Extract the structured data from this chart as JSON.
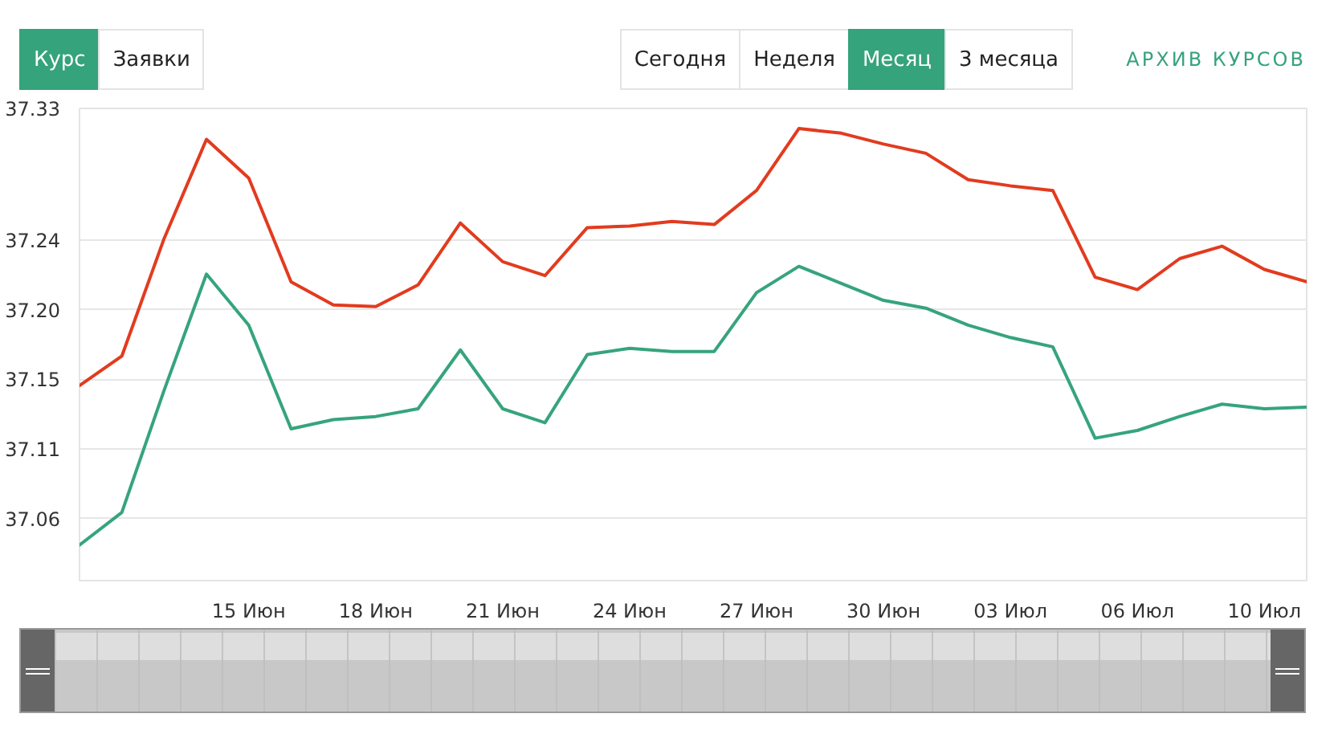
{
  "chart_data": {
    "type": "line",
    "annotations": [
      "Курс",
      "Заявки",
      "Сегодня",
      "Неделя",
      "Месяц",
      "3 месяца",
      "АРХИВ КУРСОВ"
    ],
    "categories": [
      null,
      null,
      null,
      null,
      "15 Июн",
      null,
      null,
      "18 Июн",
      null,
      null,
      "21 Июн",
      null,
      null,
      "24 Июн",
      null,
      null,
      "27 Июн",
      null,
      null,
      "30 Июн",
      null,
      null,
      "03 Июл",
      null,
      null,
      "06 Июл",
      null,
      null,
      "10 Июл",
      null
    ],
    "series": [
      {
        "color": "#e23b1f",
        "values": [
          37.146,
          37.165,
          37.241,
          37.305,
          37.28,
          37.213,
          37.198,
          37.197,
          37.211,
          37.251,
          37.226,
          37.217,
          37.248,
          37.249,
          37.252,
          37.25,
          37.272,
          37.312,
          37.309,
          37.302,
          37.296,
          37.279,
          37.275,
          37.272,
          37.216,
          37.208,
          37.228,
          37.236,
          37.221,
          37.213
        ]
      },
      {
        "color": "#36a47c",
        "values": [
          37.043,
          37.064,
          37.143,
          37.218,
          37.185,
          37.118,
          37.124,
          37.126,
          37.131,
          37.169,
          37.131,
          37.122,
          37.166,
          37.17,
          37.168,
          37.168,
          37.206,
          37.223,
          37.212,
          37.201,
          37.196,
          37.185,
          37.177,
          37.171,
          37.112,
          37.117,
          37.126,
          37.134,
          37.131,
          37.132
        ]
      }
    ],
    "ylim": [
      37.02,
      37.325
    ],
    "yticks": [
      37.06,
      {
        "value": 37.105,
        "label": "37.11"
      },
      37.15,
      {
        "value": 37.195,
        "label": "37.20"
      },
      37.24,
      {
        "value": 37.325,
        "label": "37.33"
      }
    ],
    "grid": "y"
  }
}
